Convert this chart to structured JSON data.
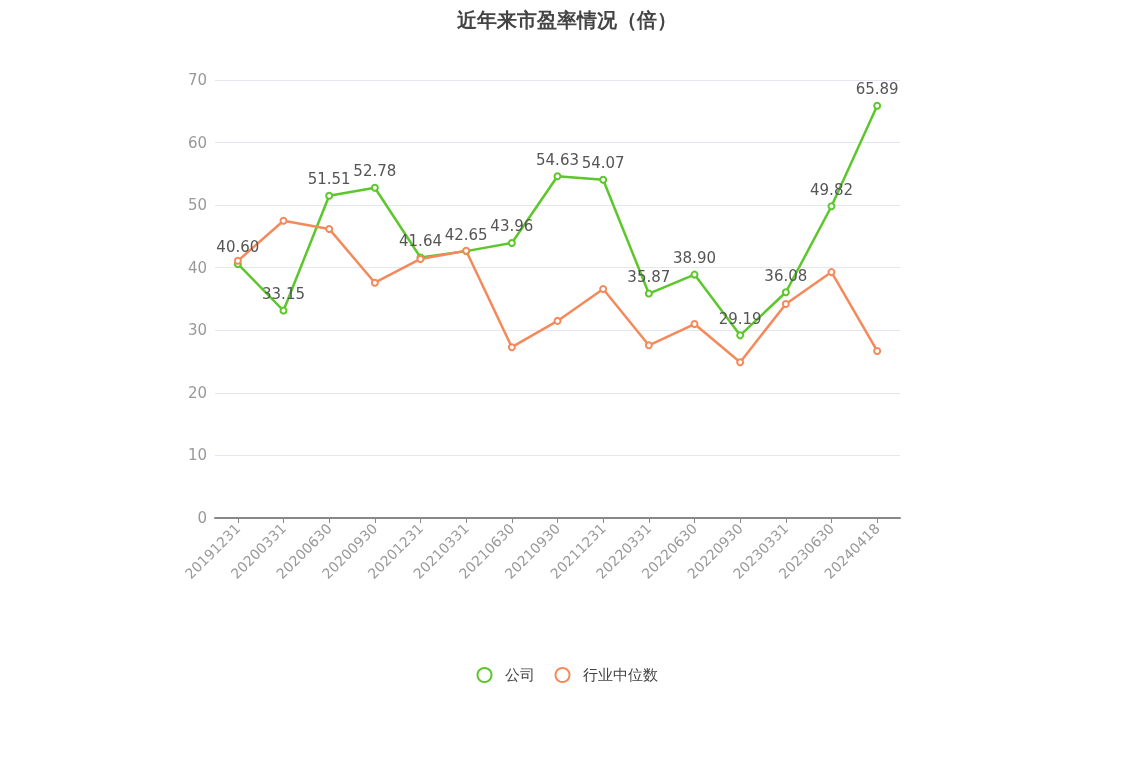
{
  "chart_data": {
    "type": "line",
    "title": "近年来市盈率情况（倍）",
    "categories": [
      "20191231",
      "20200331",
      "20200630",
      "20200930",
      "20201231",
      "20210331",
      "20210630",
      "20210930",
      "20211231",
      "20220331",
      "20220630",
      "20220930",
      "20230331",
      "20230630",
      "20240418"
    ],
    "series": [
      {
        "name": "公司",
        "color": "#5cc72a",
        "values": [
          40.6,
          33.15,
          51.51,
          52.78,
          41.64,
          42.65,
          43.96,
          54.63,
          54.07,
          35.87,
          38.9,
          29.19,
          36.08,
          49.82,
          65.89
        ],
        "value_labels": [
          "40.60",
          "33.15",
          "51.51",
          "52.78",
          "41.64",
          "42.65",
          "43.96",
          "54.63",
          "54.07",
          "35.87",
          "38.90",
          "29.19",
          "36.08",
          "49.82",
          "65.89"
        ]
      },
      {
        "name": "行业中位数",
        "color": "#f5895a",
        "values": [
          41.1,
          47.5,
          46.2,
          37.6,
          41.4,
          42.7,
          27.3,
          31.5,
          36.6,
          27.6,
          31.0,
          24.9,
          34.2,
          39.3,
          26.7
        ]
      }
    ],
    "ylim": [
      0,
      70
    ],
    "yticks": [
      0,
      10,
      20,
      30,
      40,
      50,
      60,
      70
    ],
    "grid": "y",
    "legend": "bottom",
    "marker": "circle",
    "line_style": "solid"
  }
}
